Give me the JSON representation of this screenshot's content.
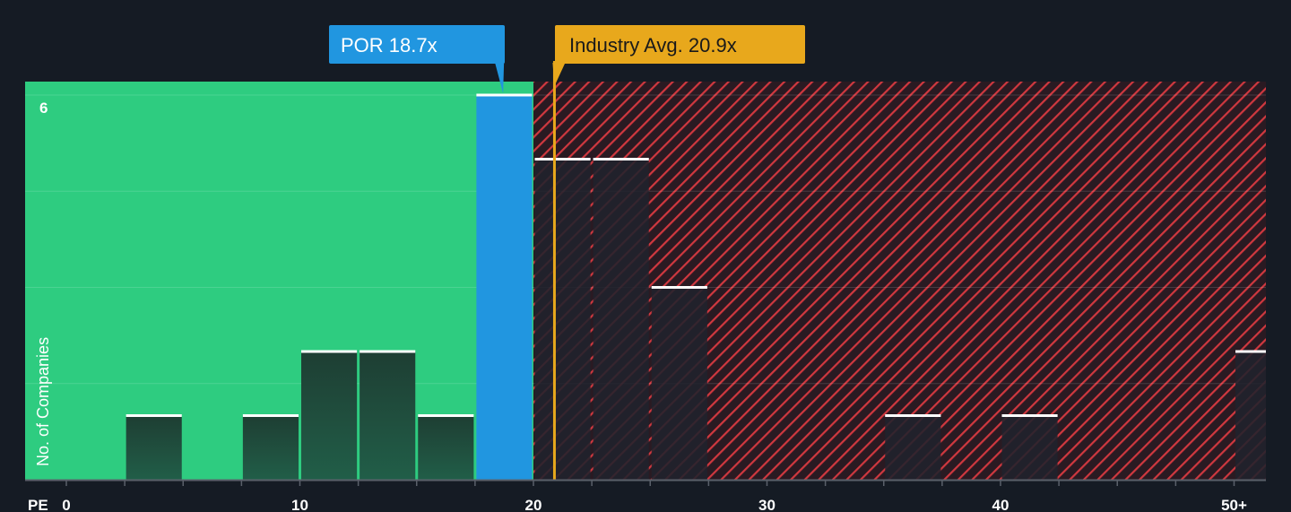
{
  "chart_data": {
    "type": "bar",
    "title": "",
    "xlabel": "PE",
    "ylabel": "No. of Companies",
    "xlim": [
      0,
      51
    ],
    "ylim": [
      0,
      6.2
    ],
    "bin_width": 2.5,
    "x_ticks": [
      {
        "value": 0,
        "label": "0"
      },
      {
        "value": 10,
        "label": "10"
      },
      {
        "value": 20,
        "label": "20"
      },
      {
        "value": 30,
        "label": "30"
      },
      {
        "value": 40,
        "label": "40"
      },
      {
        "value": 50,
        "label": "50+"
      }
    ],
    "minor_tick_step": 2.5,
    "y_ticks": [
      {
        "value": 6,
        "label": "6"
      }
    ],
    "y_gridlines": [
      1.5,
      3,
      4.5,
      6
    ],
    "bars": [
      {
        "x_start": 2.5,
        "value": 1,
        "group": "peer"
      },
      {
        "x_start": 7.5,
        "value": 1,
        "group": "peer"
      },
      {
        "x_start": 10,
        "value": 2,
        "group": "peer"
      },
      {
        "x_start": 12.5,
        "value": 2,
        "group": "peer"
      },
      {
        "x_start": 15,
        "value": 1,
        "group": "peer"
      },
      {
        "x_start": 17.5,
        "value": 6,
        "group": "company"
      },
      {
        "x_start": 20,
        "value": 5,
        "group": "above"
      },
      {
        "x_start": 22.5,
        "value": 5,
        "group": "above"
      },
      {
        "x_start": 25,
        "value": 3,
        "group": "above"
      },
      {
        "x_start": 35,
        "value": 1,
        "group": "above"
      },
      {
        "x_start": 40,
        "value": 1,
        "group": "above"
      },
      {
        "x_start": 50,
        "value": 2,
        "group": "above"
      }
    ],
    "fair_region_end": 20,
    "company": {
      "name": "POR",
      "value": 18.7,
      "label": "POR 18.7x"
    },
    "industry": {
      "name": "Industry Avg.",
      "value": 20.9,
      "label": "Industry Avg. 20.9x"
    },
    "colors": {
      "background": "#151b24",
      "fair_region": "#2ecc80",
      "peer_bar_top": "#1e3e33",
      "peer_bar_bottom": "#215e48",
      "company_bar": "#2196e0",
      "over_region": "#2a1a22",
      "hatch": "#d0383f",
      "above_bar": "#20222c",
      "cap": "#ffffff",
      "industry": "#e8a81c",
      "axis": "#5a606a",
      "text": "#ffffff"
    }
  }
}
